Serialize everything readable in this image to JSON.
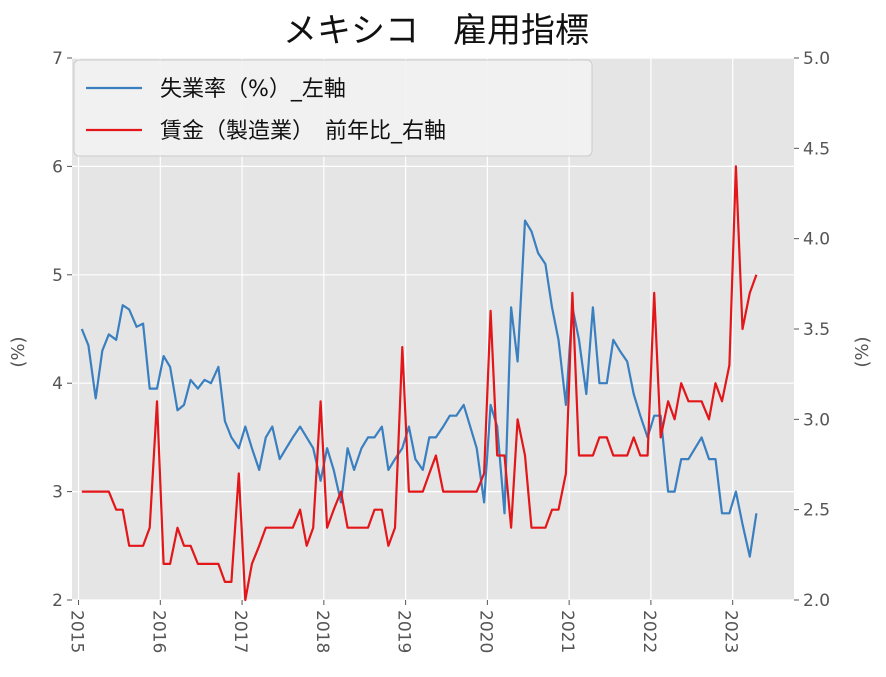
{
  "chart_data": {
    "type": "line",
    "title": "メキシコ　雇用指標",
    "xlabel": "",
    "ylabel_left": "(%)",
    "ylabel_right": "(%)",
    "x_ticks": [
      "2015",
      "2016",
      "2017",
      "2018",
      "2019",
      "2020",
      "2021",
      "2022",
      "2023"
    ],
    "xlim": [
      2014.92,
      2023.75
    ],
    "y_left": {
      "lim": [
        2,
        7
      ],
      "ticks": [
        "2",
        "3",
        "4",
        "5",
        "6",
        "7"
      ]
    },
    "y_right": {
      "lim": [
        2.0,
        5.0
      ],
      "ticks": [
        "2.0",
        "2.5",
        "3.0",
        "3.5",
        "4.0",
        "4.5",
        "5.0"
      ]
    },
    "grid": true,
    "legend_position": "top-left",
    "colors": {
      "plot_bg": "#e5e5e5",
      "grid": "#ffffff",
      "unemployment": "#3a7fbf",
      "wages": "#e3161a"
    },
    "series": [
      {
        "name": "失業率（%）_左軸",
        "axis": "left",
        "x": [
          2015.04,
          2015.12,
          2015.21,
          2015.29,
          2015.37,
          2015.46,
          2015.54,
          2015.62,
          2015.71,
          2015.79,
          2015.87,
          2015.96,
          2016.04,
          2016.12,
          2016.21,
          2016.29,
          2016.37,
          2016.46,
          2016.54,
          2016.62,
          2016.71,
          2016.79,
          2016.87,
          2016.96,
          2017.04,
          2017.12,
          2017.21,
          2017.29,
          2017.37,
          2017.46,
          2017.54,
          2017.62,
          2017.71,
          2017.79,
          2017.87,
          2017.96,
          2018.04,
          2018.12,
          2018.21,
          2018.29,
          2018.37,
          2018.46,
          2018.54,
          2018.62,
          2018.71,
          2018.79,
          2018.87,
          2018.96,
          2019.04,
          2019.12,
          2019.21,
          2019.29,
          2019.37,
          2019.46,
          2019.54,
          2019.62,
          2019.71,
          2019.79,
          2019.87,
          2019.96,
          2020.04,
          2020.12,
          2020.21,
          2020.29,
          2020.37,
          2020.46,
          2020.54,
          2020.62,
          2020.71,
          2020.79,
          2020.87,
          2020.96,
          2021.04,
          2021.12,
          2021.21,
          2021.29,
          2021.37,
          2021.46,
          2021.54,
          2021.62,
          2021.71,
          2021.79,
          2021.87,
          2021.96,
          2022.04,
          2022.12,
          2022.21,
          2022.29,
          2022.37,
          2022.46,
          2022.54,
          2022.62,
          2022.71,
          2022.79,
          2022.87,
          2022.96,
          2023.04,
          2023.12,
          2023.21,
          2023.29
        ],
        "values": [
          4.5,
          4.35,
          3.86,
          4.3,
          4.45,
          4.4,
          4.72,
          4.68,
          4.52,
          4.55,
          3.95,
          3.95,
          4.25,
          4.15,
          3.75,
          3.8,
          4.03,
          3.95,
          4.03,
          4.0,
          4.15,
          3.65,
          3.5,
          3.4,
          3.6,
          3.4,
          3.2,
          3.5,
          3.6,
          3.3,
          3.4,
          3.5,
          3.6,
          3.5,
          3.4,
          3.1,
          3.4,
          3.2,
          2.9,
          3.4,
          3.2,
          3.4,
          3.5,
          3.5,
          3.6,
          3.2,
          3.3,
          3.4,
          3.6,
          3.3,
          3.2,
          3.5,
          3.5,
          3.6,
          3.7,
          3.7,
          3.8,
          3.6,
          3.4,
          2.9,
          3.8,
          3.6,
          2.8,
          4.7,
          4.2,
          5.5,
          5.4,
          5.2,
          5.1,
          4.7,
          4.4,
          3.8,
          4.7,
          4.4,
          3.9,
          4.7,
          4.0,
          4.0,
          4.4,
          4.3,
          4.2,
          3.9,
          3.7,
          3.5,
          3.7,
          3.7,
          3.0,
          3.0,
          3.3,
          3.3,
          3.4,
          3.5,
          3.3,
          3.3,
          2.8,
          2.8,
          3.0,
          2.7,
          2.4,
          2.8
        ]
      },
      {
        "name": "賃金（製造業）　前年比_右軸",
        "axis": "right",
        "x": [
          2015.04,
          2015.12,
          2015.21,
          2015.29,
          2015.37,
          2015.46,
          2015.54,
          2015.62,
          2015.71,
          2015.79,
          2015.87,
          2015.96,
          2016.04,
          2016.12,
          2016.21,
          2016.29,
          2016.37,
          2016.46,
          2016.54,
          2016.62,
          2016.71,
          2016.79,
          2016.87,
          2016.96,
          2017.04,
          2017.12,
          2017.21,
          2017.29,
          2017.37,
          2017.46,
          2017.54,
          2017.62,
          2017.71,
          2017.79,
          2017.87,
          2017.96,
          2018.04,
          2018.12,
          2018.21,
          2018.29,
          2018.37,
          2018.46,
          2018.54,
          2018.62,
          2018.71,
          2018.79,
          2018.87,
          2018.96,
          2019.04,
          2019.12,
          2019.21,
          2019.29,
          2019.37,
          2019.46,
          2019.54,
          2019.62,
          2019.71,
          2019.79,
          2019.87,
          2019.96,
          2020.04,
          2020.12,
          2020.21,
          2020.29,
          2020.37,
          2020.46,
          2020.54,
          2020.62,
          2020.71,
          2020.79,
          2020.87,
          2020.96,
          2021.04,
          2021.12,
          2021.21,
          2021.29,
          2021.37,
          2021.46,
          2021.54,
          2021.62,
          2021.71,
          2021.79,
          2021.87,
          2021.96,
          2022.04,
          2022.12,
          2022.21,
          2022.29,
          2022.37,
          2022.46,
          2022.54,
          2022.62,
          2022.71,
          2022.79,
          2022.87,
          2022.96,
          2023.04,
          2023.12,
          2023.21,
          2023.29
        ],
        "values": [
          2.6,
          2.6,
          2.6,
          2.6,
          2.6,
          2.5,
          2.5,
          2.3,
          2.3,
          2.3,
          2.4,
          3.1,
          2.2,
          2.2,
          2.4,
          2.3,
          2.3,
          2.2,
          2.2,
          2.2,
          2.2,
          2.1,
          2.1,
          2.7,
          2.0,
          2.2,
          2.3,
          2.4,
          2.4,
          2.4,
          2.4,
          2.4,
          2.5,
          2.3,
          2.4,
          3.1,
          2.4,
          2.5,
          2.6,
          2.4,
          2.4,
          2.4,
          2.4,
          2.5,
          2.5,
          2.3,
          2.4,
          3.4,
          2.6,
          2.6,
          2.6,
          2.7,
          2.8,
          2.6,
          2.6,
          2.6,
          2.6,
          2.6,
          2.6,
          2.7,
          3.6,
          2.8,
          2.8,
          2.4,
          3.0,
          2.8,
          2.4,
          2.4,
          2.4,
          2.5,
          2.5,
          2.7,
          3.7,
          2.8,
          2.8,
          2.8,
          2.9,
          2.9,
          2.8,
          2.8,
          2.8,
          2.9,
          2.8,
          2.8,
          3.7,
          2.9,
          3.1,
          3.0,
          3.2,
          3.1,
          3.1,
          3.1,
          3.0,
          3.2,
          3.1,
          3.3,
          4.4,
          3.5,
          3.7,
          3.8
        ]
      }
    ]
  }
}
